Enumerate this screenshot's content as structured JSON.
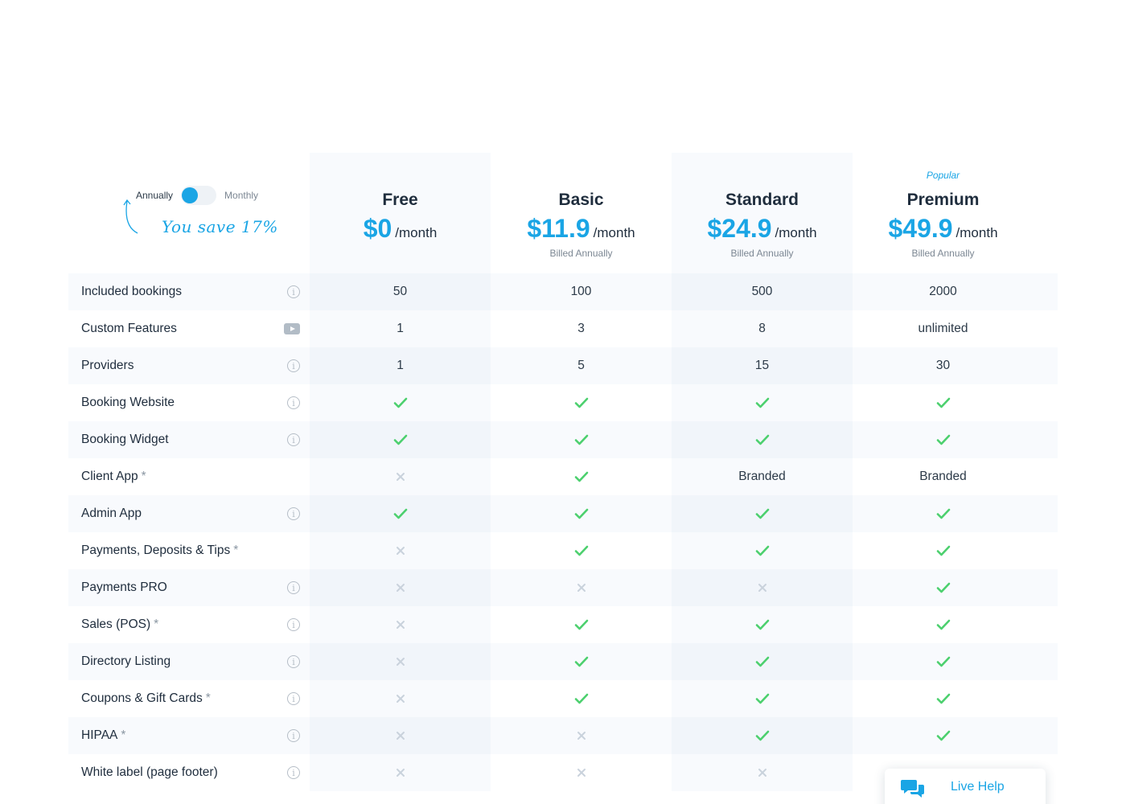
{
  "billing_toggle": {
    "left_label": "Annually",
    "right_label": "Monthly",
    "save_note": "You save 17%"
  },
  "plans": [
    {
      "name": "Free",
      "price": "$0",
      "period": "/month",
      "billed": "",
      "badge": ""
    },
    {
      "name": "Basic",
      "price": "$11.9",
      "period": "/month",
      "billed": "Billed Annually",
      "badge": ""
    },
    {
      "name": "Standard",
      "price": "$24.9",
      "period": "/month",
      "billed": "Billed Annually",
      "badge": ""
    },
    {
      "name": "Premium",
      "price": "$49.9",
      "period": "/month",
      "billed": "Billed Annually",
      "badge": "Popular"
    }
  ],
  "features": [
    {
      "label": "Included bookings",
      "asterisk": "",
      "icon": "info-icon",
      "values": [
        "50",
        "100",
        "500",
        "2000"
      ]
    },
    {
      "label": "Custom Features",
      "asterisk": "",
      "icon": "video-icon",
      "values": [
        "1",
        "3",
        "8",
        "unlimited"
      ]
    },
    {
      "label": "Providers",
      "asterisk": "",
      "icon": "info-icon",
      "values": [
        "1",
        "5",
        "15",
        "30"
      ]
    },
    {
      "label": "Booking Website",
      "asterisk": "",
      "icon": "info-icon",
      "values": [
        "check",
        "check",
        "check",
        "check"
      ]
    },
    {
      "label": "Booking Widget",
      "asterisk": "",
      "icon": "info-icon",
      "values": [
        "check",
        "check",
        "check",
        "check"
      ]
    },
    {
      "label": "Client App",
      "asterisk": "*",
      "icon": "",
      "values": [
        "cross",
        "check",
        "Branded",
        "Branded"
      ]
    },
    {
      "label": "Admin App",
      "asterisk": "",
      "icon": "info-icon",
      "values": [
        "check",
        "check",
        "check",
        "check"
      ]
    },
    {
      "label": "Payments, Deposits & Tips",
      "asterisk": "*",
      "icon": "",
      "values": [
        "cross",
        "check",
        "check",
        "check"
      ]
    },
    {
      "label": "Payments PRO",
      "asterisk": "",
      "icon": "info-icon",
      "values": [
        "cross",
        "cross",
        "cross",
        "check"
      ]
    },
    {
      "label": "Sales (POS)",
      "asterisk": "*",
      "icon": "info-icon",
      "values": [
        "cross",
        "check",
        "check",
        "check"
      ]
    },
    {
      "label": "Directory Listing",
      "asterisk": "",
      "icon": "info-icon",
      "values": [
        "cross",
        "check",
        "check",
        "check"
      ]
    },
    {
      "label": "Coupons & Gift Cards",
      "asterisk": "*",
      "icon": "info-icon",
      "values": [
        "cross",
        "check",
        "check",
        "check"
      ]
    },
    {
      "label": "HIPAA",
      "asterisk": "*",
      "icon": "info-icon",
      "values": [
        "cross",
        "cross",
        "check",
        "check"
      ]
    },
    {
      "label": "White label (page footer)",
      "asterisk": "",
      "icon": "info-icon",
      "values": [
        "cross",
        "cross",
        "cross",
        ""
      ]
    }
  ],
  "live_help": {
    "label": "Live Help",
    "icon": "chat-bubbles-icon"
  },
  "colors": {
    "accent": "#1aa5e5",
    "check": "#4cd06e",
    "cross": "#c9d2dc"
  }
}
